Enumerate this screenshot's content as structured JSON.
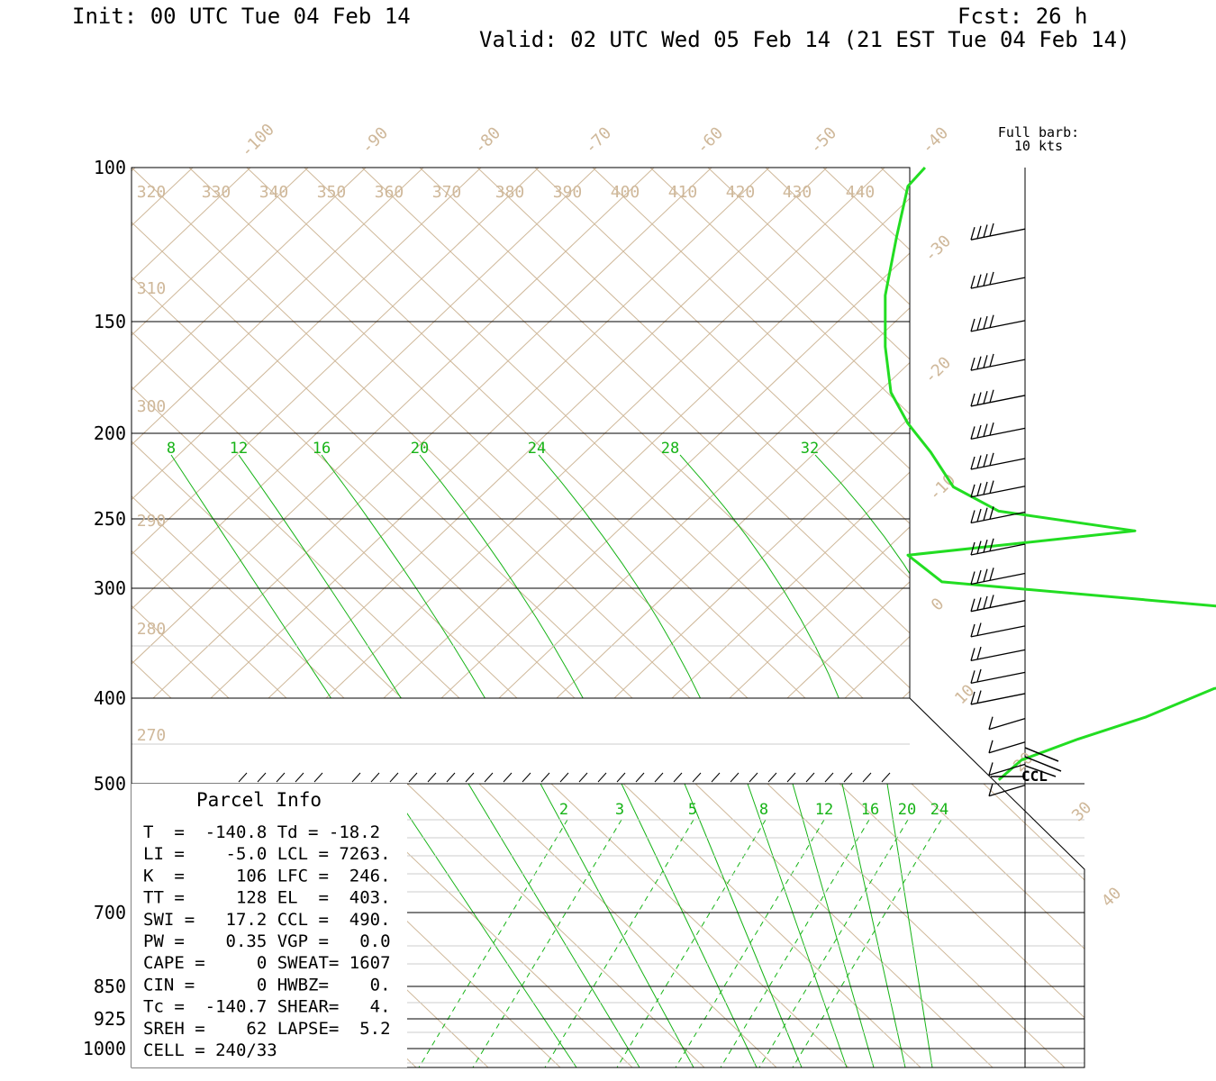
{
  "header": {
    "init": "Init: 00 UTC Tue 04 Feb 14",
    "fcst": "Fcst:   26 h",
    "valid": "Valid: 02 UTC Wed 05 Feb 14 (21 EST Tue 04 Feb 14)"
  },
  "barb_legend": {
    "line1": "Full barb:",
    "line2": "10 kts"
  },
  "colors": {
    "profile": "#22dd22",
    "mixing_ratio": "#16b316",
    "dry_adiabat": "#cfb89a",
    "frame": "#000000"
  },
  "chart_data": {
    "type": "line",
    "pressure_labels": [
      "100",
      "150",
      "200",
      "250",
      "300",
      "400",
      "500",
      "700",
      "850",
      "925",
      "1000"
    ],
    "isotherm_labels": [
      "-100",
      "-90",
      "-80",
      "-70",
      "-60",
      "-50",
      "-40",
      "-30",
      "-20",
      "-10",
      "0",
      "10",
      "20",
      "30",
      "40"
    ],
    "theta_labels": [
      "320",
      "330",
      "340",
      "350",
      "360",
      "370",
      "380",
      "390",
      "400",
      "410",
      "420",
      "430",
      "440",
      "310",
      "300",
      "290",
      "280",
      "270"
    ],
    "mixing_ratio_labels_upper": [
      "8",
      "12",
      "16",
      "20",
      "24",
      "28",
      "32"
    ],
    "mixing_ratio_labels_lower": [
      "2",
      "3",
      "5",
      "8",
      "12",
      "16",
      "20",
      "24"
    ],
    "series": [
      {
        "name": "",
        "pressure_hpa": [
          100,
          105,
          120,
          140,
          160,
          180,
          195,
          210,
          230,
          245,
          258,
          275,
          295,
          320,
          340,
          370,
          390,
          420,
          445,
          470,
          495
        ],
        "temperature_c": [
          -38.5,
          -40,
          -41,
          -42,
          -42,
          -41.5,
          -40,
          -38,
          -36,
          -32,
          -20,
          -40,
          -37,
          -6,
          -2,
          -1,
          -13,
          -19,
          -25,
          -30,
          -32
        ]
      }
    ],
    "wind_barbs_pressure_hpa": [
      110,
      125,
      140,
      155,
      170,
      185,
      200,
      215,
      230,
      250,
      270,
      290,
      310,
      330,
      350,
      370,
      395,
      420,
      445,
      470
    ],
    "ccl_label": "CCL"
  },
  "parcel": {
    "title": "Parcel  Info",
    "rows": [
      "T  =  -140.8 Td = -18.2",
      "LI =    -5.0 LCL = 7263.",
      "K  =     106 LFC =  246.",
      "TT =     128 EL  =  403.",
      "SWI =   17.2 CCL =  490.",
      "PW =    0.35 VGP =   0.0",
      "CAPE =     0 SWEAT= 1607",
      "CIN =      0 HWBZ=    0.",
      "Tc =  -140.7 SHEAR=   4.",
      "SREH =    62 LAPSE=  5.2",
      "CELL = 240/33"
    ]
  }
}
